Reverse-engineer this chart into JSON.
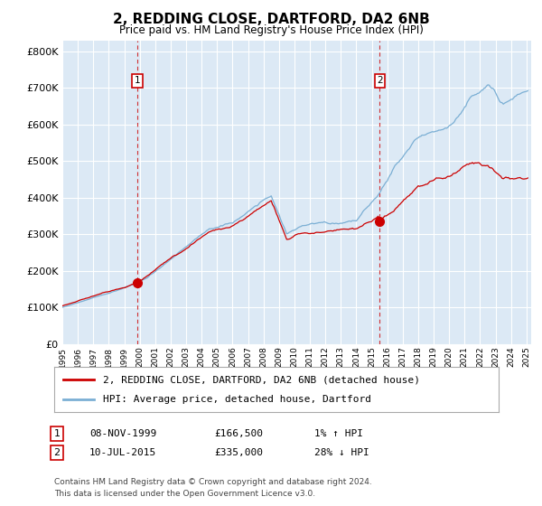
{
  "title": "2, REDDING CLOSE, DARTFORD, DA2 6NB",
  "subtitle": "Price paid vs. HM Land Registry's House Price Index (HPI)",
  "legend_red": "2, REDDING CLOSE, DARTFORD, DA2 6NB (detached house)",
  "legend_blue": "HPI: Average price, detached house, Dartford",
  "transaction1_date": "08-NOV-1999",
  "transaction1_price": 166500,
  "transaction1_hpi": "1% ↑ HPI",
  "transaction1_year": 1999.86,
  "transaction2_date": "10-JUL-2015",
  "transaction2_price": 335000,
  "transaction2_hpi": "28% ↓ HPI",
  "transaction2_year": 2015.52,
  "ylim_max": 830000,
  "plot_bg": "#dce9f5",
  "footer": "Contains HM Land Registry data © Crown copyright and database right 2024.\nThis data is licensed under the Open Government Licence v3.0.",
  "hpi_keypoints_x": [
    1995.0,
    1999.0,
    2000.5,
    2004.5,
    2006.0,
    2008.5,
    2009.5,
    2010.5,
    2014.0,
    2015.5,
    2016.5,
    2018.0,
    2020.0,
    2021.5,
    2022.5,
    2023.5,
    2025.0
  ],
  "hpi_keypoints_y": [
    100000,
    155000,
    180000,
    310000,
    325000,
    395000,
    290000,
    310000,
    315000,
    390000,
    460000,
    530000,
    555000,
    625000,
    650000,
    615000,
    650000
  ],
  "red_keypoints_x": [
    1995.0,
    1999.86,
    2004.5,
    2006.0,
    2008.5,
    2009.5,
    2010.5,
    2014.0,
    2015.52,
    2016.5,
    2018.0,
    2020.0,
    2021.5,
    2022.5,
    2023.5,
    2025.0
  ],
  "red_keypoints_y": [
    100000,
    166500,
    305000,
    320000,
    390000,
    285000,
    305000,
    310000,
    335000,
    365000,
    420000,
    445000,
    490000,
    480000,
    450000,
    455000
  ]
}
